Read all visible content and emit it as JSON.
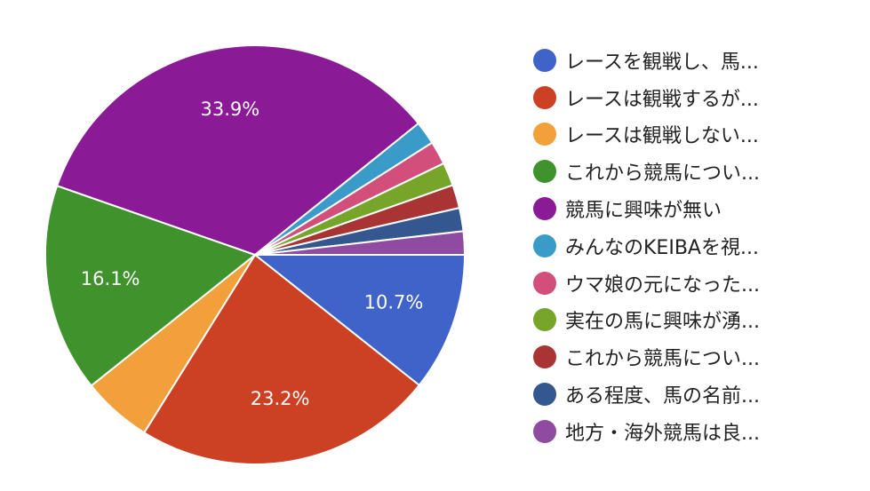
{
  "chart_data": {
    "type": "pie",
    "title": "",
    "slices": [
      {
        "label": "レースを観戦し、馬...",
        "value": 10.7,
        "color": "#3f63c8",
        "display_label": "10.7%"
      },
      {
        "label": "レースは観戦するが...",
        "value": 23.2,
        "color": "#cc4123",
        "display_label": "23.2%"
      },
      {
        "label": "レースは観戦しない...",
        "value": 5.4,
        "color": "#f2a03c",
        "display_label": ""
      },
      {
        "label": "これから競馬につい...",
        "value": 16.1,
        "color": "#3f922c",
        "display_label": "16.1%"
      },
      {
        "label": "競馬に興味が無い",
        "value": 33.9,
        "color": "#8b1a96",
        "display_label": "33.9%"
      },
      {
        "label": "みんなのKEIBAを視...",
        "value": 1.8,
        "color": "#3a9bc9",
        "display_label": ""
      },
      {
        "label": "ウマ娘の元になった...",
        "value": 1.8,
        "color": "#d24f7c",
        "display_label": ""
      },
      {
        "label": "実在の馬に興味が湧...",
        "value": 1.8,
        "color": "#76a52a",
        "display_label": ""
      },
      {
        "label": "これから競馬につい...",
        "value": 1.8,
        "color": "#a83434",
        "display_label": ""
      },
      {
        "label": "ある程度、馬の名前...",
        "value": 1.8,
        "color": "#34578f",
        "display_label": ""
      },
      {
        "label": "地方・海外競馬は良...",
        "value": 1.8,
        "color": "#8f4ba0",
        "display_label": ""
      }
    ],
    "legend_position": "right"
  }
}
